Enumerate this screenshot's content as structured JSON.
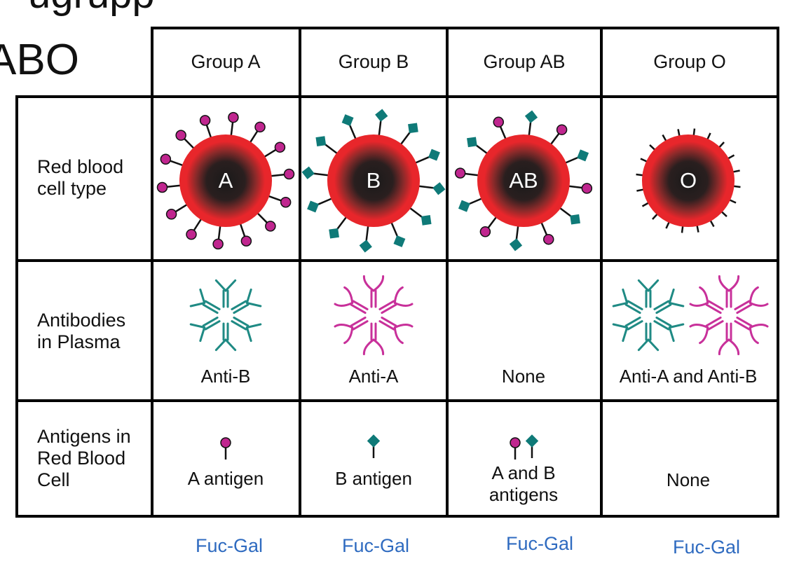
{
  "title_partial": "ugrupp",
  "system_label": "ABO",
  "columns": [
    "Group A",
    "Group B",
    "Group AB",
    "Group O"
  ],
  "row_labels": {
    "rbc": [
      "Red blood",
      "cell type"
    ],
    "antibodies": [
      "Antibodies",
      "in Plasma"
    ],
    "antigens": [
      "Antigens in",
      "Red Blood",
      "Cell"
    ]
  },
  "cell_letters": [
    "A",
    "B",
    "AB",
    "O"
  ],
  "antibody_captions": [
    "Anti-B",
    "Anti-A",
    "None",
    "Anti-A and Anti-B"
  ],
  "antigen_captions": [
    "A antigen",
    "B antigen",
    "A and B antigens",
    "None"
  ],
  "antigen_captions_lines": {
    "ab": [
      "A and B",
      "antigens"
    ]
  },
  "footer_labels": [
    "Fuc-Gal",
    "Fuc-Gal",
    "Fuc-Gal",
    "Fuc-Gal"
  ],
  "colors": {
    "a_antigen": "#c0268f",
    "b_antigen": "#0f7a78",
    "cell_red": "#e8262b",
    "anti_a": "#c8309a",
    "anti_b": "#1f8a84",
    "footer_text": "#2f6bc0"
  }
}
